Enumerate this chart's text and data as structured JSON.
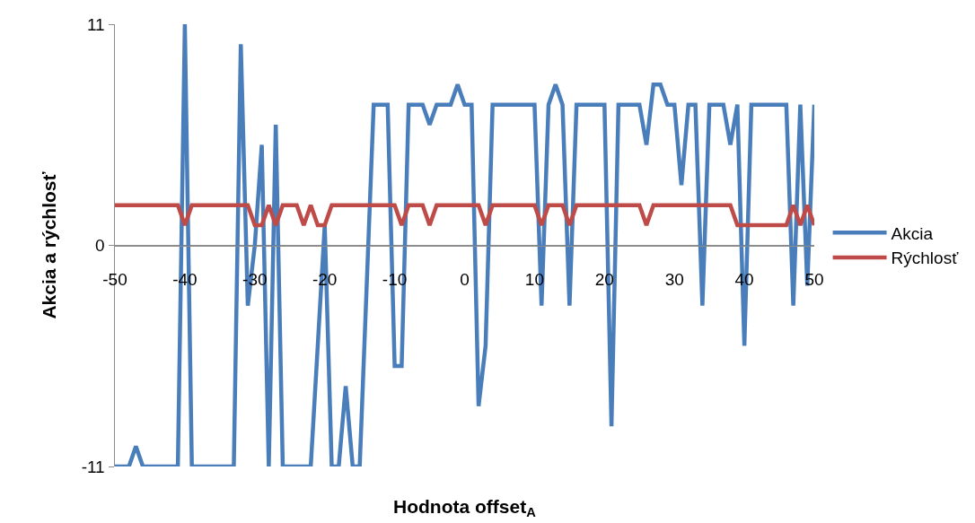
{
  "chart_data": {
    "type": "line",
    "xlabel": "Hodnota offset$_{A}$",
    "ylabel": "Akcia a rýchlosť",
    "x": [
      -50,
      -49,
      -48,
      -47,
      -46,
      -45,
      -44,
      -43,
      -42,
      -41,
      -40,
      -39,
      -38,
      -37,
      -36,
      -35,
      -34,
      -33,
      -32,
      -31,
      -30,
      -29,
      -28,
      -27,
      -26,
      -25,
      -24,
      -23,
      -22,
      -21,
      -20,
      -19,
      -18,
      -17,
      -16,
      -15,
      -14,
      -13,
      -12,
      -11,
      -10,
      -9,
      -8,
      -7,
      -6,
      -5,
      -4,
      -3,
      -2,
      -1,
      0,
      1,
      2,
      3,
      4,
      5,
      6,
      7,
      8,
      9,
      10,
      11,
      12,
      13,
      14,
      15,
      16,
      17,
      18,
      19,
      20,
      21,
      22,
      23,
      24,
      25,
      26,
      27,
      28,
      29,
      30,
      31,
      32,
      33,
      34,
      35,
      36,
      37,
      38,
      39,
      40,
      41,
      42,
      43,
      44,
      45,
      46,
      47,
      48,
      49,
      50
    ],
    "series": [
      {
        "name": "Akcia",
        "color": "#4a7ebb",
        "values": [
          -11,
          -11,
          -11,
          -10,
          -11,
          -11,
          -11,
          -11,
          -11,
          -11,
          11,
          -11,
          -11,
          -11,
          -11,
          -11,
          -11,
          -11,
          10,
          -3,
          0,
          5,
          -11,
          6,
          -11,
          -11,
          -11,
          -11,
          -11,
          -5,
          1,
          -11,
          -11,
          -7,
          -11,
          -11,
          -2,
          7,
          7,
          7,
          -6,
          -6,
          7,
          7,
          7,
          6,
          7,
          7,
          7,
          8,
          7,
          7,
          -8,
          -5,
          7,
          7,
          7,
          7,
          7,
          7,
          7,
          -3,
          7,
          8,
          7,
          -3,
          7,
          7,
          7,
          7,
          7,
          -9,
          7,
          7,
          7,
          7,
          5,
          8,
          8,
          7,
          7,
          3,
          7,
          7,
          -3,
          7,
          7,
          7,
          5,
          7,
          -5,
          7,
          7,
          7,
          7,
          7,
          7,
          -3,
          7,
          -2,
          7
        ]
      },
      {
        "name": "Rýchlosť",
        "color": "#be4b48",
        "values": [
          2,
          2,
          2,
          2,
          2,
          2,
          2,
          2,
          2,
          2,
          1,
          2,
          2,
          2,
          2,
          2,
          2,
          2,
          2,
          2,
          1,
          1,
          2,
          1,
          2,
          2,
          2,
          1,
          2,
          1,
          1,
          2,
          2,
          2,
          2,
          2,
          2,
          2,
          2,
          2,
          2,
          1,
          2,
          2,
          2,
          1,
          2,
          2,
          2,
          2,
          2,
          2,
          2,
          1,
          2,
          2,
          2,
          2,
          2,
          2,
          2,
          1,
          2,
          2,
          2,
          1,
          2,
          2,
          2,
          2,
          2,
          2,
          2,
          2,
          2,
          2,
          1,
          2,
          2,
          2,
          2,
          2,
          2,
          2,
          2,
          2,
          2,
          2,
          2,
          1,
          1,
          1,
          1,
          1,
          1,
          1,
          1,
          2,
          1,
          2,
          1
        ]
      }
    ],
    "xlim": [
      -50,
      50
    ],
    "xticks": [
      -50,
      -40,
      -30,
      -20,
      -10,
      0,
      10,
      20,
      30,
      40,
      50
    ],
    "ylim": [
      -11,
      11
    ],
    "yticks": [
      -11,
      0,
      11
    ],
    "grid": "y",
    "legend": "right",
    "marker": "none",
    "line_style": "solid"
  }
}
